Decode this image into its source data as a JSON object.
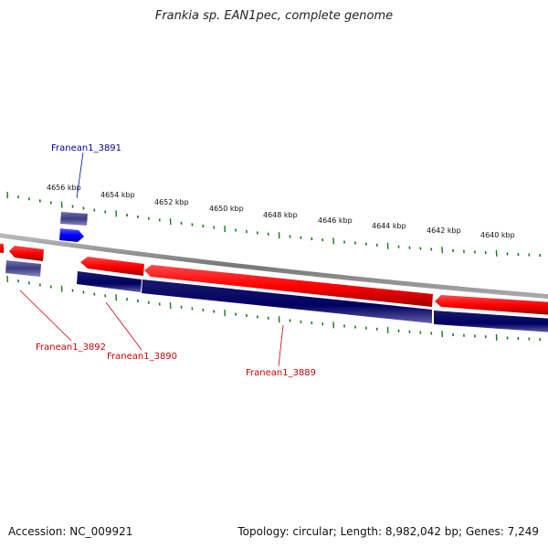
{
  "title": "Frankia sp. EAN1pec, complete genome",
  "footer": {
    "accession": "Accession: NC_009921",
    "summary": "Topology: circular; Length: 8,982,042 bp; Genes: 7,249"
  },
  "scale_labels": [
    "4656 kbp",
    "4654 kbp",
    "4652 kbp",
    "4650 kbp",
    "4648 kbp",
    "4646 kbp",
    "4644 kbp",
    "4642 kbp",
    "4640 kbp"
  ],
  "gene_labels": {
    "g3891": "Franean1_3891",
    "g3892": "Franean1_3892",
    "g3890": "Franean1_3890",
    "g3889": "Franean1_3889"
  },
  "colors": {
    "forward_gene": "#ff0000",
    "reverse_gene": "#000066",
    "highlight_gene": "#0000ff",
    "rna_gene": "#4b4b8c",
    "tick": "#1a7a1a",
    "backbone": "#888888",
    "label_blue": "#0000aa",
    "label_red": "#cc0000"
  }
}
